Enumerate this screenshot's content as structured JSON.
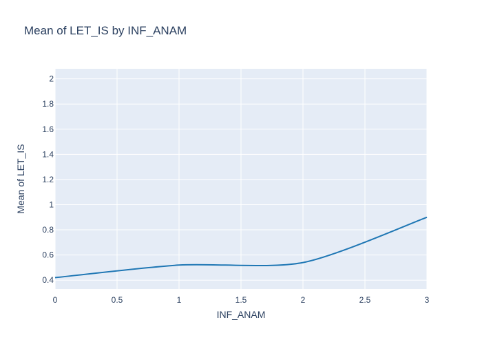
{
  "chart_data": {
    "type": "line",
    "title": "Mean of LET_IS by INF_ANAM",
    "xlabel": "INF_ANAM",
    "ylabel": "Mean of LET_IS",
    "x": [
      0,
      1,
      2,
      3
    ],
    "y": [
      0.42,
      0.52,
      0.54,
      0.9
    ],
    "smoothing": "spline",
    "xlim": [
      0,
      3
    ],
    "ylim": [
      0.33,
      2.08
    ],
    "xticks": [
      0,
      0.5,
      1,
      1.5,
      2,
      2.5,
      3
    ],
    "yticks": [
      0.4,
      0.6,
      0.8,
      1,
      1.2,
      1.4,
      1.6,
      1.8,
      2
    ],
    "grid": true,
    "colors": {
      "line": "#1f77b4",
      "plot_background": "#e5ecf6",
      "grid": "#ffffff",
      "text": "#2a3f5f"
    }
  }
}
